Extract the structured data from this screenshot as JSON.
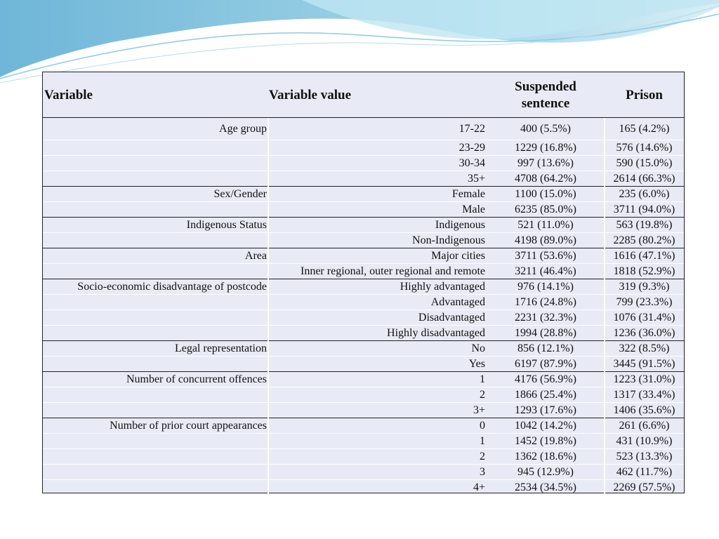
{
  "table": {
    "header": [
      "Variable",
      "Variable value",
      "Suspended sentence",
      "Prison"
    ],
    "groups": [
      {
        "variable": "Age group",
        "rows": [
          [
            "17-22",
            "400 (5.5%)",
            "165 (4.2%)"
          ],
          [
            "23-29",
            "1229 (16.8%)",
            "576 (14.6%)"
          ],
          [
            "30-34",
            "997 (13.6%)",
            "590 (15.0%)"
          ],
          [
            "35+",
            "4708 (64.2%)",
            "2614 (66.3%)"
          ]
        ]
      },
      {
        "variable": "Sex/Gender",
        "rows": [
          [
            "Female",
            "1100 (15.0%)",
            "235 (6.0%)"
          ],
          [
            "Male",
            "6235 (85.0%)",
            "3711 (94.0%)"
          ]
        ]
      },
      {
        "variable": "Indigenous Status",
        "rows": [
          [
            "Indigenous",
            "521 (11.0%)",
            "563 (19.8%)"
          ],
          [
            "Non-Indigenous",
            "4198 (89.0%)",
            "2285 (80.2%)"
          ]
        ]
      },
      {
        "variable": "Area",
        "rows": [
          [
            "Major cities",
            "3711 (53.6%)",
            "1616 (47.1%)"
          ],
          [
            "Inner regional, outer regional and remote",
            "3211 (46.4%)",
            "1818 (52.9%)"
          ]
        ]
      },
      {
        "variable": "Socio-economic disadvantage of postcode",
        "rows": [
          [
            "Highly advantaged",
            "976 (14.1%)",
            "319 (9.3%)"
          ],
          [
            "Advantaged",
            "1716 (24.8%)",
            "799 (23.3%)"
          ],
          [
            "Disadvantaged",
            "2231 (32.3%)",
            "1076 (31.4%)"
          ],
          [
            "Highly disadvantaged",
            "1994 (28.8%)",
            "1236 (36.0%)"
          ]
        ]
      },
      {
        "variable": "Legal representation",
        "rows": [
          [
            "No",
            "856 (12.1%)",
            "322 (8.5%)"
          ],
          [
            "Yes",
            "6197 (87.9%)",
            "3445 (91.5%)"
          ]
        ]
      },
      {
        "variable": "Number of concurrent offences",
        "rows": [
          [
            "1",
            "4176 (56.9%)",
            "1223 (31.0%)"
          ],
          [
            "2",
            "1866 (25.4%)",
            "1317 (33.4%)"
          ],
          [
            "3+",
            "1293 (17.6%)",
            "1406 (35.6%)"
          ]
        ]
      },
      {
        "variable": "Number of prior court appearances",
        "rows": [
          [
            "0",
            "1042 (14.2%)",
            "261 (6.6%)"
          ],
          [
            "1",
            "1452 (19.8%)",
            "431 (10.9%)"
          ],
          [
            "2",
            "1362 (18.6%)",
            "523 (13.3%)"
          ],
          [
            "3",
            "945 (12.9%)",
            "462 (11.7%)"
          ],
          [
            "4+",
            "2534 (34.5%)",
            "2269 (57.5%)"
          ]
        ]
      }
    ]
  }
}
